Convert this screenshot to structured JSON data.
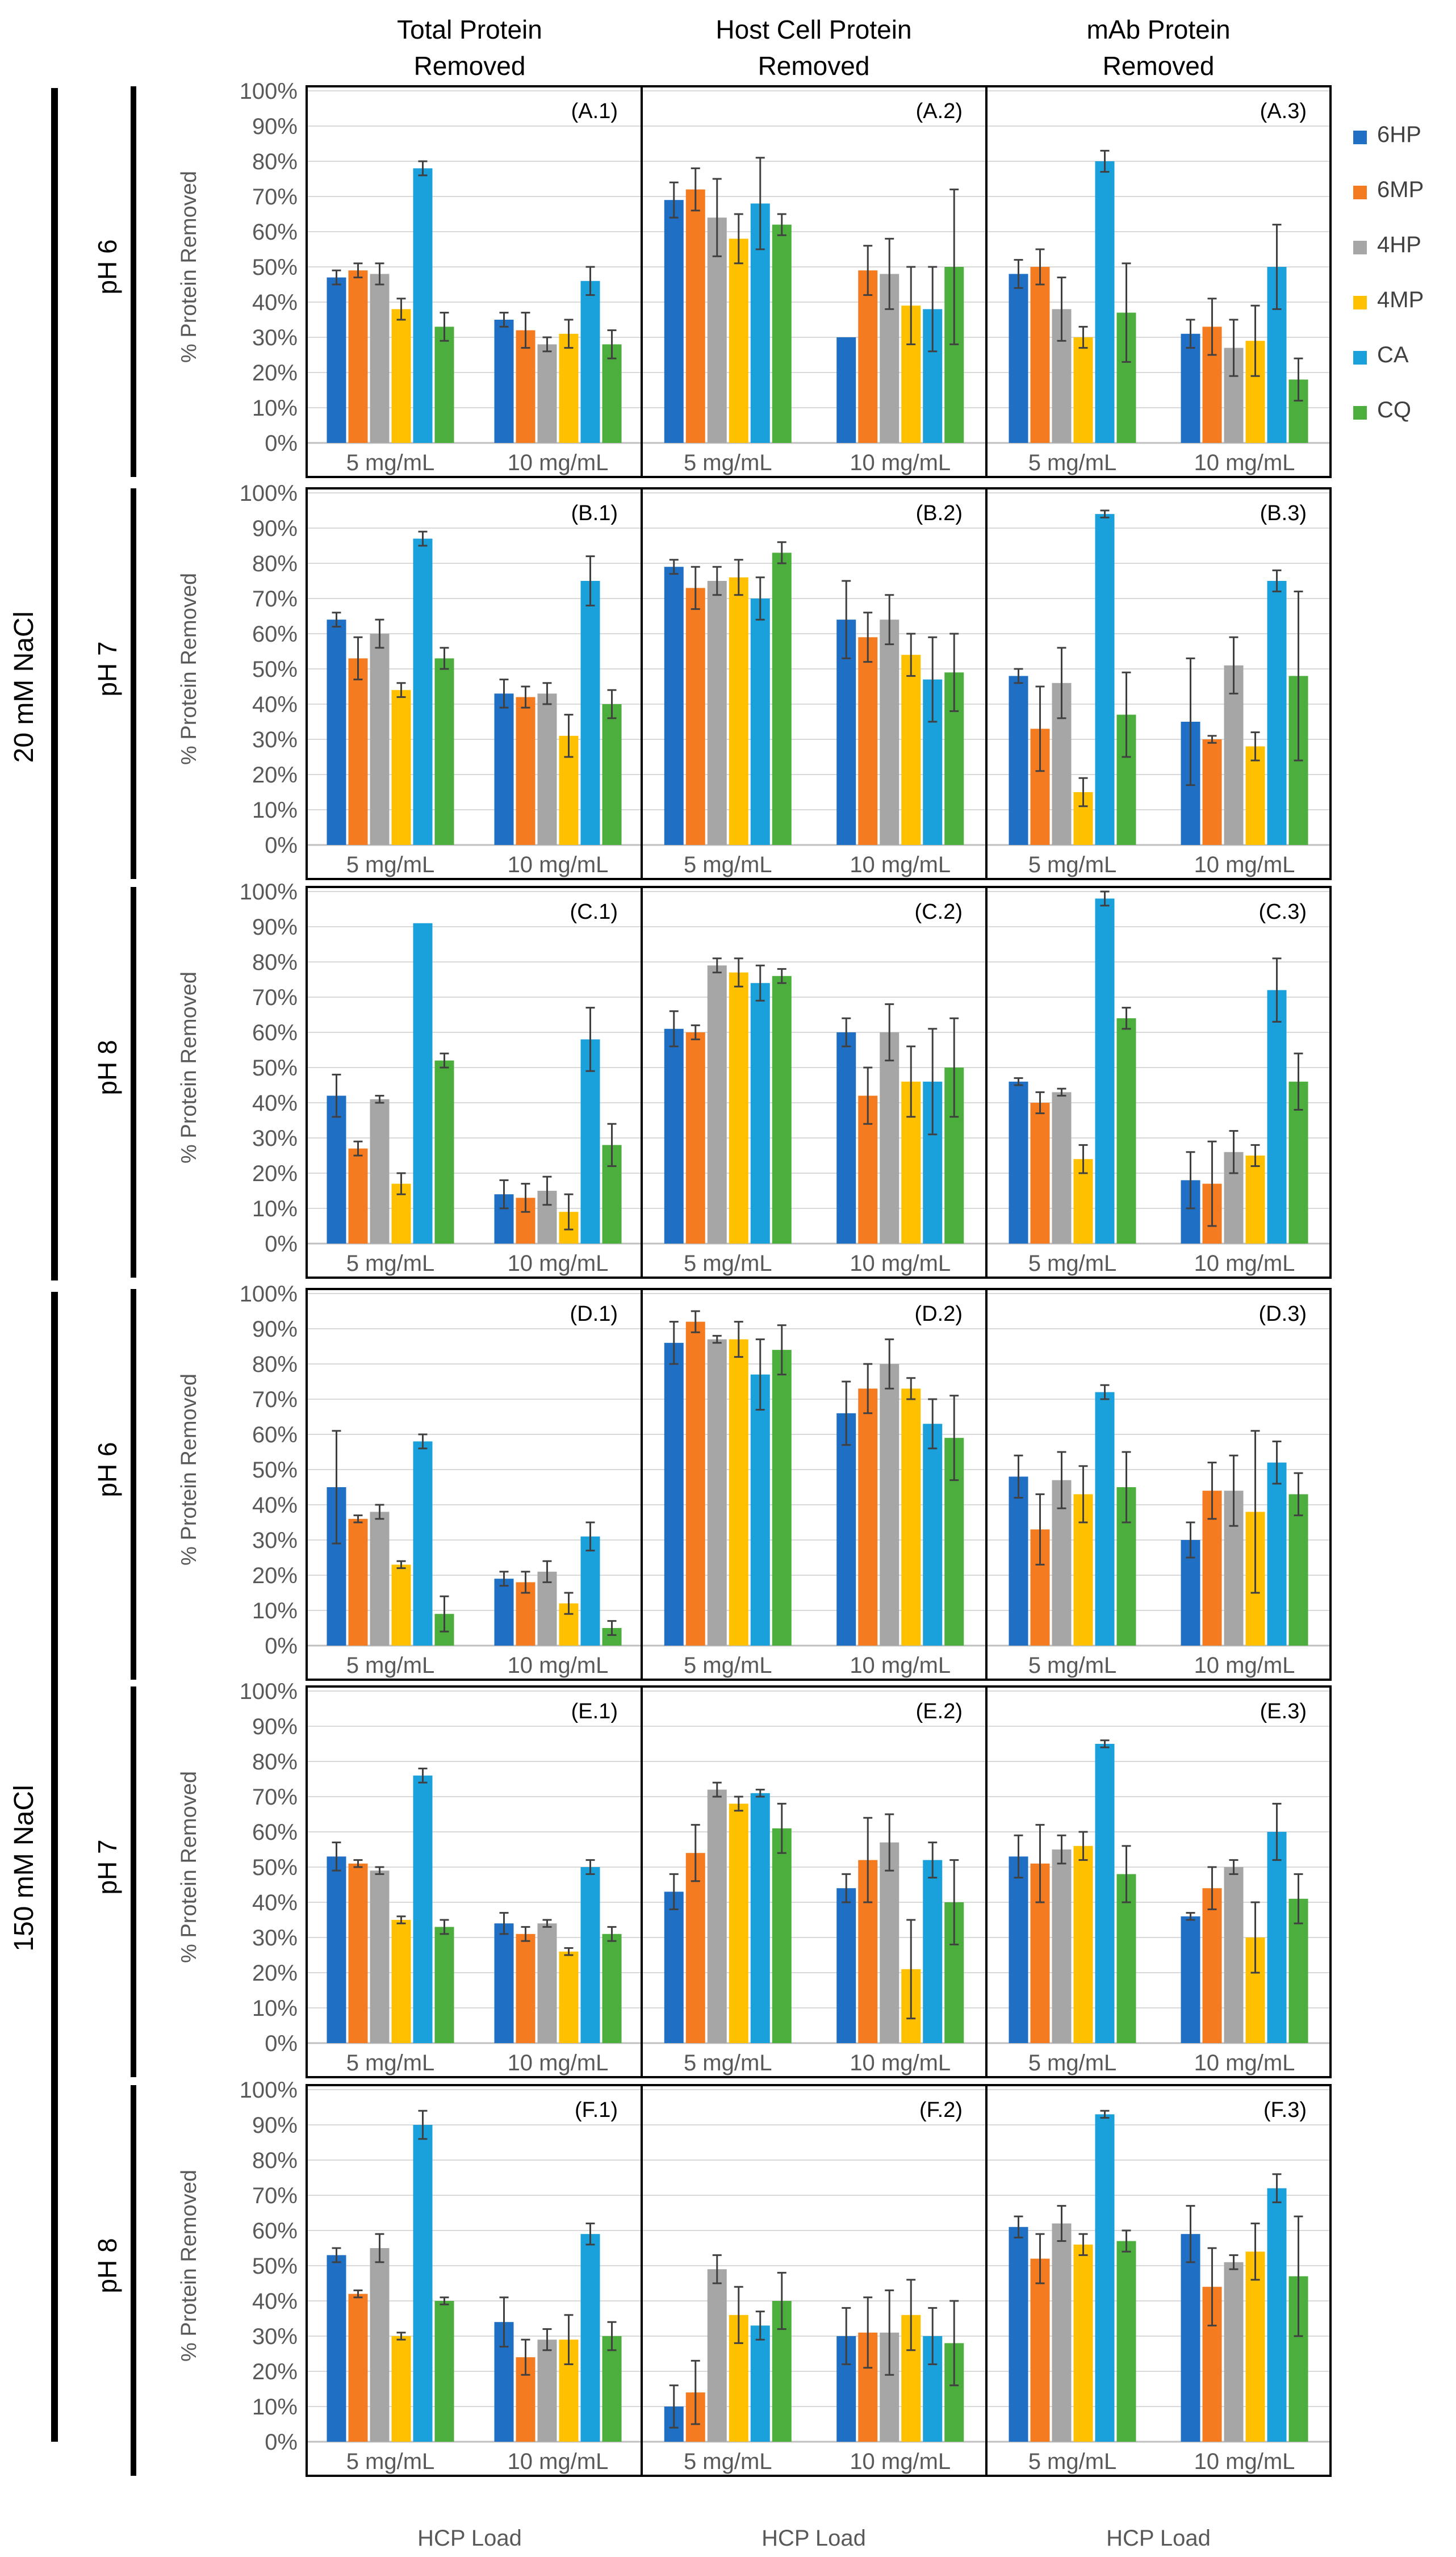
{
  "column_titles": [
    [
      "Total Protein",
      "Removed"
    ],
    [
      "Host Cell Protein",
      "Removed"
    ],
    [
      "mAb Protein",
      "Removed"
    ]
  ],
  "group_labels": [
    "20 mM NaCl",
    "150 mM NaCl"
  ],
  "row_labels": [
    "pH 6",
    "pH 7",
    "pH 8",
    "pH 6",
    "pH 7",
    "pH 8"
  ],
  "colors": {
    "6HP": "#1f6fc5",
    "6MP": "#f47b20",
    "4HP": "#a6a6a6",
    "4MP": "#ffc000",
    "CA": "#1aa0db",
    "CQ": "#4cae3c"
  },
  "chart_data": {
    "type": "bar",
    "ylabel": "% Protein Removed",
    "xlabel": "HCP Load",
    "ylim": [
      0,
      100
    ],
    "yticks": [
      "0%",
      "10%",
      "20%",
      "30%",
      "40%",
      "50%",
      "60%",
      "70%",
      "80%",
      "90%",
      "100%"
    ],
    "categories": [
      "5 mg/mL",
      "10 mg/mL"
    ],
    "series_names": [
      "6HP",
      "6MP",
      "4HP",
      "4MP",
      "CA",
      "CQ"
    ],
    "grid": "horizontal",
    "legend": "right of top row",
    "panels": [
      {
        "id": "(A.1)",
        "values": [
          [
            47,
            49,
            48,
            38,
            78,
            33
          ],
          [
            35,
            32,
            28,
            31,
            46,
            28
          ]
        ],
        "errors": [
          [
            2,
            2,
            3,
            3,
            2,
            4
          ],
          [
            2,
            5,
            2,
            4,
            4,
            4
          ]
        ]
      },
      {
        "id": "(A.2)",
        "values": [
          [
            69,
            72,
            64,
            58,
            68,
            62
          ],
          [
            30,
            49,
            48,
            39,
            38,
            50
          ]
        ],
        "errors": [
          [
            5,
            6,
            11,
            7,
            13,
            3
          ],
          [
            0,
            7,
            10,
            11,
            12,
            22
          ]
        ]
      },
      {
        "id": "(A.3)",
        "values": [
          [
            48,
            50,
            38,
            30,
            80,
            37
          ],
          [
            31,
            33,
            27,
            29,
            50,
            18
          ]
        ],
        "errors": [
          [
            4,
            5,
            9,
            3,
            3,
            14
          ],
          [
            4,
            8,
            8,
            10,
            12,
            6
          ]
        ]
      },
      {
        "id": "(B.1)",
        "values": [
          [
            64,
            53,
            60,
            44,
            87,
            53
          ],
          [
            43,
            42,
            43,
            31,
            75,
            40
          ]
        ],
        "errors": [
          [
            2,
            6,
            4,
            2,
            2,
            3
          ],
          [
            4,
            3,
            3,
            6,
            7,
            4
          ]
        ]
      },
      {
        "id": "(B.2)",
        "values": [
          [
            79,
            73,
            75,
            76,
            70,
            83
          ],
          [
            64,
            59,
            64,
            54,
            47,
            49
          ]
        ],
        "errors": [
          [
            2,
            6,
            4,
            5,
            6,
            3
          ],
          [
            11,
            7,
            7,
            6,
            12,
            11
          ]
        ]
      },
      {
        "id": "(B.3)",
        "values": [
          [
            48,
            33,
            46,
            15,
            94,
            37
          ],
          [
            35,
            30,
            51,
            28,
            75,
            48
          ]
        ],
        "errors": [
          [
            2,
            12,
            10,
            4,
            1,
            12
          ],
          [
            18,
            1,
            8,
            4,
            3,
            24
          ]
        ]
      },
      {
        "id": "(C.1)",
        "values": [
          [
            42,
            27,
            41,
            17,
            91,
            52
          ],
          [
            14,
            13,
            15,
            9,
            58,
            28
          ]
        ],
        "errors": [
          [
            6,
            2,
            1,
            3,
            0,
            2
          ],
          [
            4,
            4,
            4,
            5,
            9,
            6
          ]
        ]
      },
      {
        "id": "(C.2)",
        "values": [
          [
            61,
            60,
            79,
            77,
            74,
            76
          ],
          [
            60,
            42,
            60,
            46,
            46,
            50
          ]
        ],
        "errors": [
          [
            5,
            2,
            2,
            4,
            5,
            2
          ],
          [
            4,
            8,
            8,
            10,
            15,
            14
          ]
        ]
      },
      {
        "id": "(C.3)",
        "values": [
          [
            46,
            40,
            43,
            24,
            98,
            64
          ],
          [
            18,
            17,
            26,
            25,
            72,
            46
          ]
        ],
        "errors": [
          [
            1,
            3,
            1,
            4,
            2,
            3
          ],
          [
            8,
            12,
            6,
            3,
            9,
            8
          ]
        ]
      },
      {
        "id": "(D.1)",
        "values": [
          [
            45,
            36,
            38,
            23,
            58,
            9
          ],
          [
            19,
            18,
            21,
            12,
            31,
            5
          ]
        ],
        "errors": [
          [
            16,
            1,
            2,
            1,
            2,
            5
          ],
          [
            2,
            3,
            3,
            3,
            4,
            2
          ]
        ]
      },
      {
        "id": "(D.2)",
        "values": [
          [
            86,
            92,
            87,
            87,
            77,
            84
          ],
          [
            66,
            73,
            80,
            73,
            63,
            59
          ]
        ],
        "errors": [
          [
            6,
            3,
            1,
            5,
            10,
            7
          ],
          [
            9,
            7,
            7,
            3,
            7,
            12
          ]
        ]
      },
      {
        "id": "(D.3)",
        "values": [
          [
            48,
            33,
            47,
            43,
            72,
            45
          ],
          [
            30,
            44,
            44,
            38,
            52,
            43
          ]
        ],
        "errors": [
          [
            6,
            10,
            8,
            8,
            2,
            10
          ],
          [
            5,
            8,
            10,
            23,
            6,
            6
          ]
        ]
      },
      {
        "id": "(E.1)",
        "values": [
          [
            53,
            51,
            49,
            35,
            76,
            33
          ],
          [
            34,
            31,
            34,
            26,
            50,
            31
          ]
        ],
        "errors": [
          [
            4,
            1,
            1,
            1,
            2,
            2
          ],
          [
            3,
            2,
            1,
            1,
            2,
            2
          ]
        ]
      },
      {
        "id": "(E.2)",
        "values": [
          [
            43,
            54,
            72,
            68,
            71,
            61
          ],
          [
            44,
            52,
            57,
            21,
            52,
            40
          ]
        ],
        "errors": [
          [
            5,
            8,
            2,
            2,
            1,
            7
          ],
          [
            4,
            12,
            8,
            14,
            5,
            12
          ]
        ]
      },
      {
        "id": "(E.3)",
        "values": [
          [
            53,
            51,
            55,
            56,
            85,
            48
          ],
          [
            36,
            44,
            50,
            30,
            60,
            41
          ]
        ],
        "errors": [
          [
            6,
            11,
            4,
            4,
            1,
            8
          ],
          [
            1,
            6,
            2,
            10,
            8,
            7
          ]
        ]
      },
      {
        "id": "(F.1)",
        "values": [
          [
            53,
            42,
            55,
            30,
            90,
            40
          ],
          [
            34,
            24,
            29,
            29,
            59,
            30
          ]
        ],
        "errors": [
          [
            2,
            1,
            4,
            1,
            4,
            1
          ],
          [
            7,
            5,
            3,
            7,
            3,
            4
          ]
        ]
      },
      {
        "id": "(F.2)",
        "values": [
          [
            10,
            14,
            49,
            36,
            33,
            40
          ],
          [
            30,
            31,
            31,
            36,
            30,
            28
          ]
        ],
        "errors": [
          [
            6,
            9,
            4,
            8,
            4,
            8
          ],
          [
            8,
            10,
            12,
            10,
            8,
            12
          ]
        ]
      },
      {
        "id": "(F.3)",
        "values": [
          [
            61,
            52,
            62,
            56,
            93,
            57
          ],
          [
            59,
            44,
            51,
            54,
            72,
            47
          ]
        ],
        "errors": [
          [
            3,
            7,
            5,
            3,
            1,
            3
          ],
          [
            8,
            11,
            2,
            8,
            4,
            17
          ]
        ]
      }
    ]
  }
}
